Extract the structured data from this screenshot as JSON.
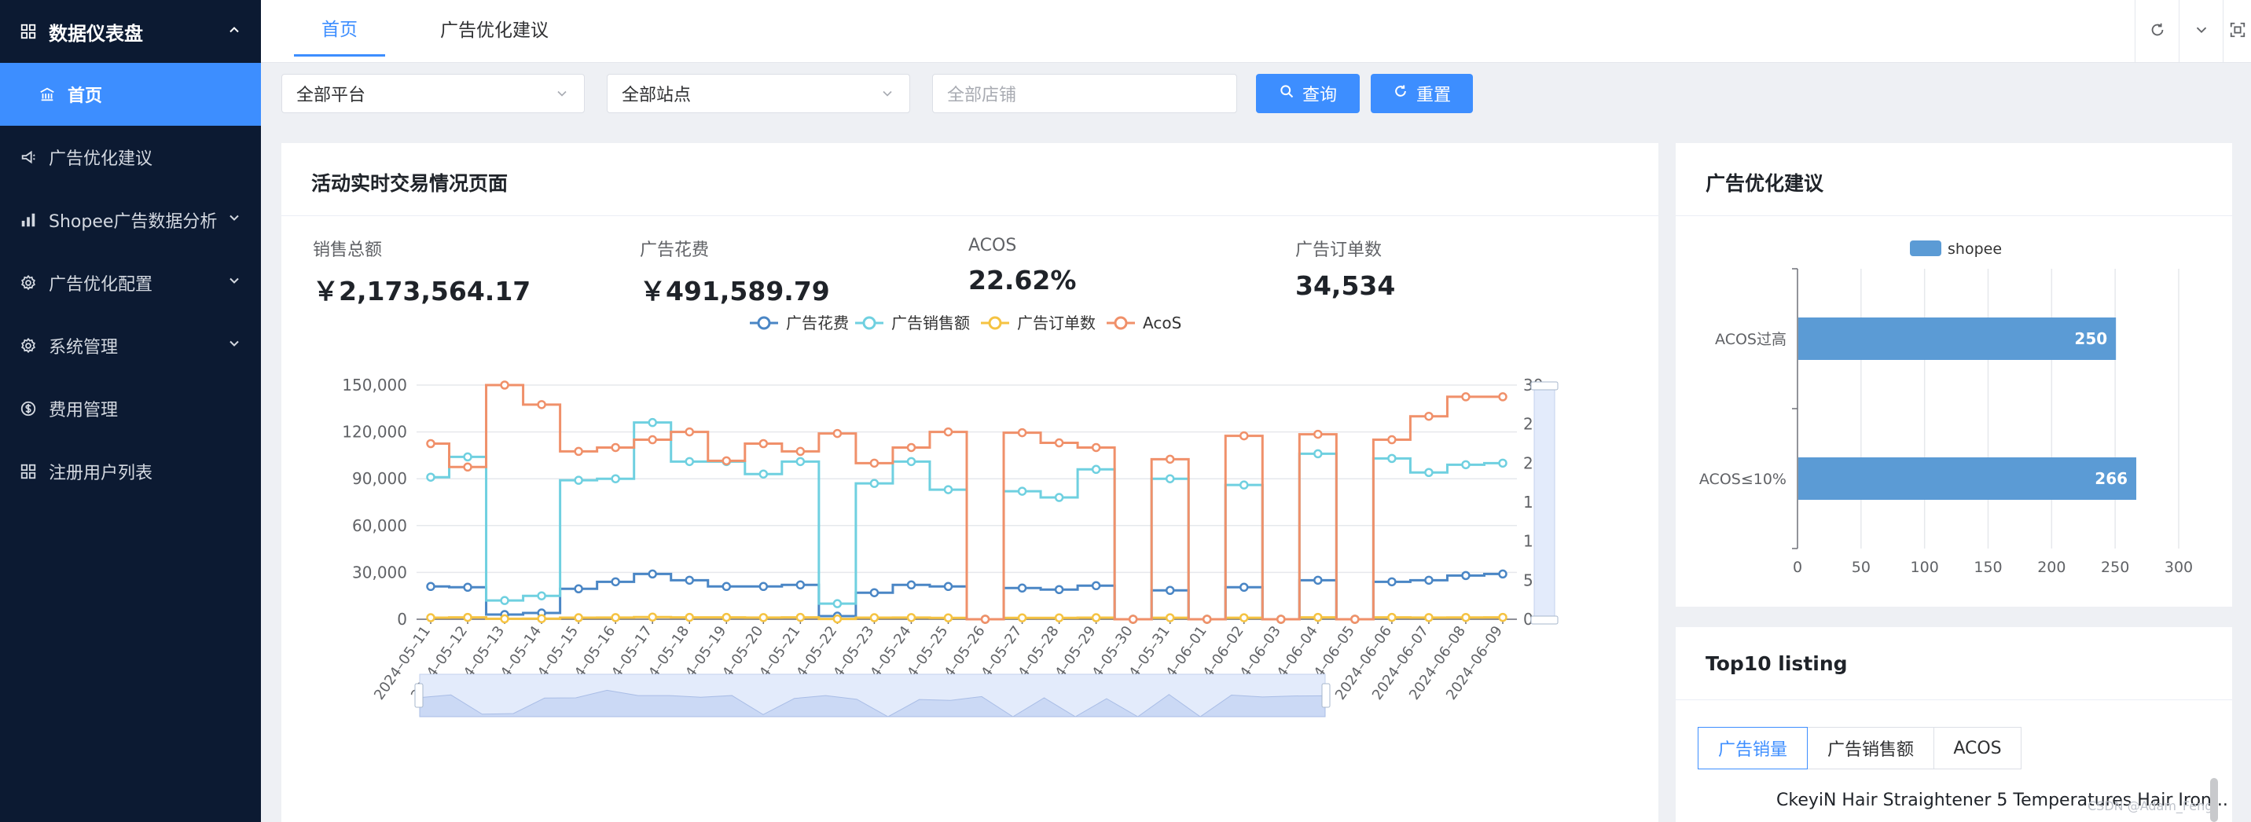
{
  "sidebar": {
    "group_title": "数据仪表盘",
    "items": [
      {
        "label": "首页"
      },
      {
        "label": "广告优化建议"
      },
      {
        "label": "Shopee广告数据分析"
      },
      {
        "label": "广告优化配置"
      },
      {
        "label": "系统管理"
      },
      {
        "label": "费用管理"
      },
      {
        "label": "注册用户列表"
      }
    ]
  },
  "tabs": [
    {
      "label": "首页"
    },
    {
      "label": "广告优化建议"
    }
  ],
  "filters": {
    "platform": "全部平台",
    "site": "全部站点",
    "shop_placeholder": "全部店铺",
    "query_label": "查询",
    "reset_label": "重置"
  },
  "activity_card": {
    "title": "活动实时交易情况页面",
    "stats": [
      {
        "label": "销售总额",
        "value": "￥2,173,564.17"
      },
      {
        "label": "广告花费",
        "value": "￥491,589.79"
      },
      {
        "label": "ACOS",
        "value": "22.62%"
      },
      {
        "label": "广告订单数",
        "value": "34,534"
      }
    ]
  },
  "advice_card": {
    "title": "广告优化建议"
  },
  "top10_card": {
    "title": "Top10 listing",
    "tabs": [
      "广告销量",
      "广告销售额",
      "ACOS"
    ],
    "first_listing": "CkeyiN Hair Straightener 5 Temperatures Hair Iron..."
  },
  "watermark": "CSDN @Adam_Feng",
  "colors": {
    "accent": "#3d8eff",
    "sidebar_bg": "#0c1a32",
    "spend": "#4a86c5",
    "sales": "#6fd0e0",
    "orders": "#f5c342",
    "acos": "#f0906a",
    "bar": "#5b9bd5"
  },
  "chart_data": [
    {
      "type": "line",
      "step": true,
      "legend": [
        "广告花费",
        "广告销售额",
        "广告订单数",
        "AcoS"
      ],
      "legend_position": "top-center",
      "x": [
        "2024-05-11",
        "2024-05-12",
        "2024-05-13",
        "2024-05-14",
        "2024-05-15",
        "2024-05-16",
        "2024-05-17",
        "2024-05-18",
        "2024-05-19",
        "2024-05-20",
        "2024-05-21",
        "2024-05-22",
        "2024-05-23",
        "2024-05-24",
        "2024-05-25",
        "2024-05-26",
        "2024-05-27",
        "2024-05-28",
        "2024-05-29",
        "2024-05-30",
        "2024-05-31",
        "2024-06-01",
        "2024-06-02",
        "2024-06-03",
        "2024-06-04",
        "2024-06-05",
        "2024-06-06",
        "2024-06-07",
        "2024-06-08",
        "2024-06-09"
      ],
      "x_tick_labels": [
        "2024–05–11",
        "2024–05–12",
        "2024–05–13",
        "2024–05–14",
        "2024–05–15",
        "2024–05–16",
        "2024–05–17",
        "2024–05–18",
        "2024–05–19",
        "2024–05–20",
        "2024–05–21",
        "2024–05–22",
        "2024–05–23",
        "2024–05–24",
        "2024–05–25",
        "2024–05–26",
        "2024–05–27",
        "2024–05–28",
        "2024–05–29",
        "2024–05–30",
        "2024–05–31",
        "2024–06–01",
        "2024–06–02",
        "2024–06–03",
        "2024–06–04",
        "2024–06–05",
        "2024–06–06",
        "2024–06–07",
        "2024–06–08",
        "2024–06–09"
      ],
      "y_left": {
        "min": 0,
        "max": 150000,
        "ticks": [
          "0",
          "30,000",
          "60,000",
          "90,000",
          "120,000",
          "150,000"
        ]
      },
      "y_right": {
        "min": 0,
        "max": 30,
        "ticks": [
          "0",
          "5",
          "10",
          "15",
          "20",
          "25",
          "30"
        ]
      },
      "grid": true,
      "series": [
        {
          "name": "广告花费",
          "axis": "left",
          "values": [
            21000,
            20500,
            3000,
            4000,
            19500,
            24000,
            29000,
            25000,
            21000,
            21000,
            22000,
            2000,
            17000,
            22000,
            21000,
            0,
            20000,
            19000,
            21500,
            0,
            18500,
            0,
            20500,
            0,
            25000,
            0,
            24000,
            25000,
            28000,
            29000
          ]
        },
        {
          "name": "广告销售额",
          "axis": "left",
          "values": [
            91000,
            104000,
            12000,
            15000,
            89000,
            90000,
            126000,
            101000,
            101000,
            93000,
            101000,
            10000,
            87000,
            101000,
            83000,
            0,
            82000,
            78000,
            96000,
            0,
            90000,
            0,
            86000,
            0,
            106000,
            0,
            103000,
            94000,
            99000,
            100000
          ]
        },
        {
          "name": "广告订单数",
          "axis": "left",
          "values": [
            1000,
            1200,
            300,
            400,
            1000,
            1100,
            1400,
            1200,
            1200,
            1100,
            1200,
            200,
            1000,
            1100,
            900,
            0,
            900,
            900,
            1000,
            0,
            950,
            0,
            950,
            0,
            1200,
            0,
            1200,
            1100,
            1150,
            1200
          ]
        },
        {
          "name": "AcoS",
          "axis": "right",
          "values": [
            22.5,
            19.5,
            30,
            27.5,
            21.5,
            22,
            23,
            24,
            20.3,
            22.5,
            21.5,
            23.8,
            20,
            22,
            24,
            0,
            23.9,
            22.6,
            22,
            0,
            20.5,
            0,
            23.5,
            0,
            23.7,
            0,
            23,
            26,
            28.5,
            28.5
          ]
        }
      ]
    },
    {
      "type": "bar",
      "orientation": "horizontal",
      "categories": [
        "ACOS过高",
        "ACOS≤10%"
      ],
      "series": [
        {
          "name": "shopee",
          "values": [
            250,
            266
          ]
        }
      ],
      "xlim": [
        0,
        300
      ],
      "x_ticks": [
        "0",
        "50",
        "100",
        "150",
        "200",
        "250",
        "300"
      ],
      "legend_position": "top-center",
      "grid": true
    }
  ]
}
